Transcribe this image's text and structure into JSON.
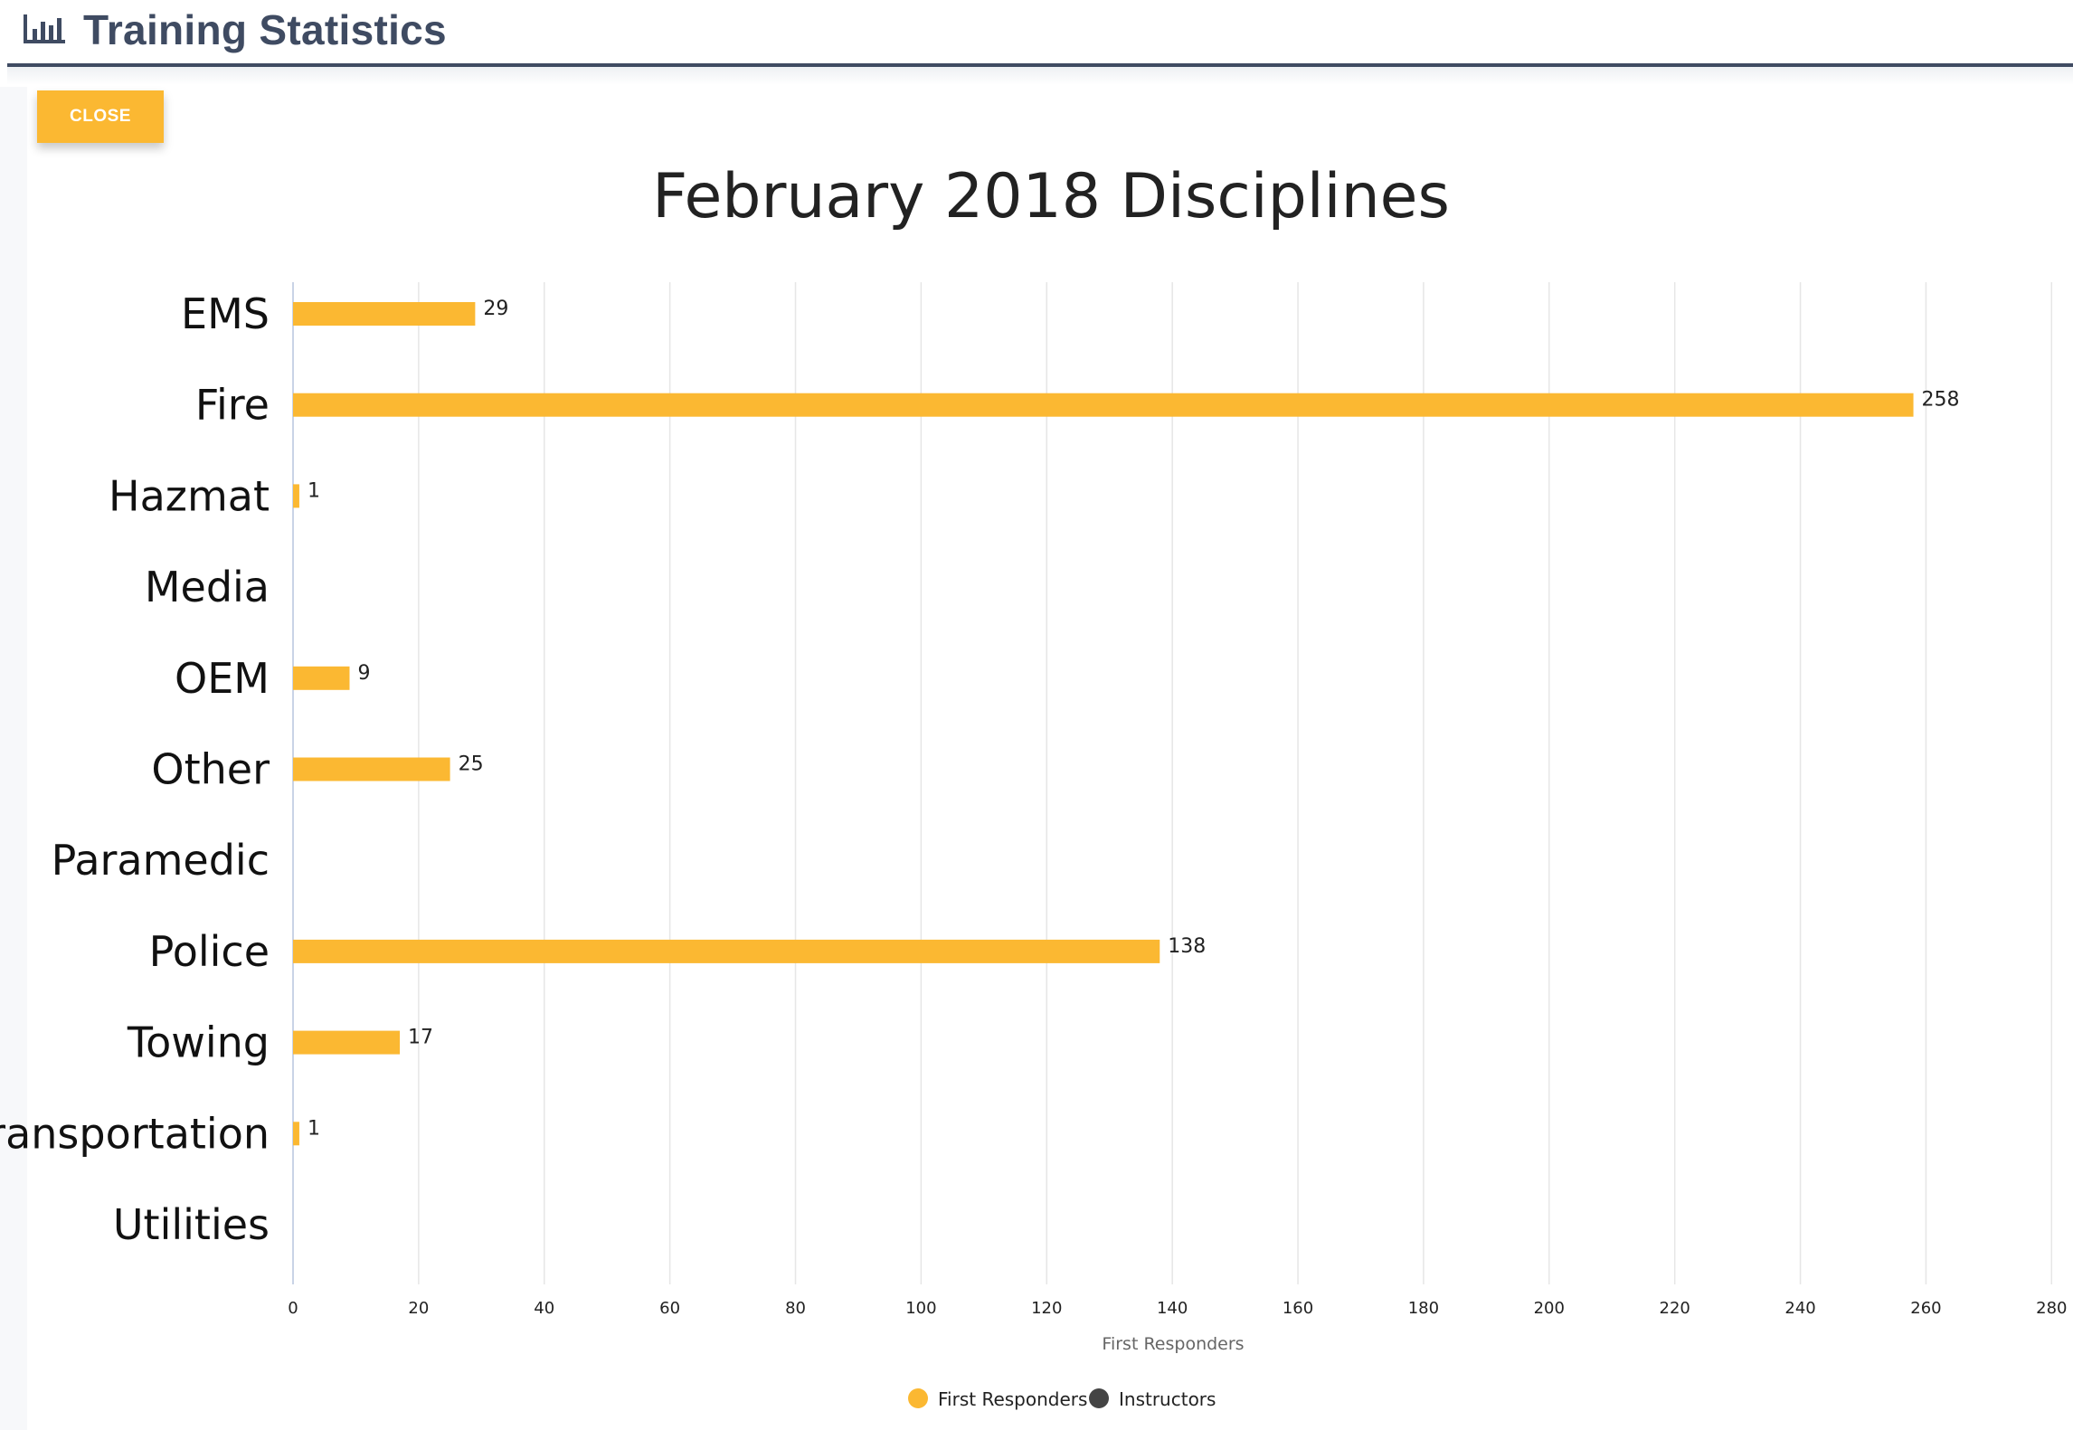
{
  "header": {
    "title": "Training Statistics",
    "icon": "bar-chart-icon",
    "color": "#3f4b62"
  },
  "close_button": {
    "label": "CLOSE",
    "color": "#fbb832"
  },
  "chart_data": {
    "type": "bar",
    "orientation": "horizontal",
    "title": "February 2018 Disciplines",
    "categories": [
      "EMS",
      "Fire",
      "Hazmat",
      "Media",
      "OEM",
      "Other",
      "Paramedic",
      "Police",
      "Towing",
      "Transportation",
      "Utilities"
    ],
    "series": [
      {
        "name": "First Responders",
        "color": "#fbb832",
        "values": [
          29,
          258,
          1,
          0,
          9,
          25,
          0,
          138,
          17,
          1,
          0
        ]
      },
      {
        "name": "Instructors",
        "color": "#444444",
        "values": [
          0,
          0,
          0,
          0,
          0,
          0,
          0,
          0,
          0,
          0,
          0
        ]
      }
    ],
    "data_labels": [
      "29",
      "258",
      "1",
      "",
      "9",
      "25",
      "",
      "138",
      "17",
      "1",
      ""
    ],
    "xlabel": "First Responders",
    "xlim": [
      0,
      280
    ],
    "xticks": [
      "0",
      "20",
      "40",
      "60",
      "80",
      "100",
      "120",
      "140",
      "160",
      "180",
      "200",
      "220",
      "240",
      "260",
      "280"
    ],
    "grid": true,
    "legend": "bottom-center"
  }
}
